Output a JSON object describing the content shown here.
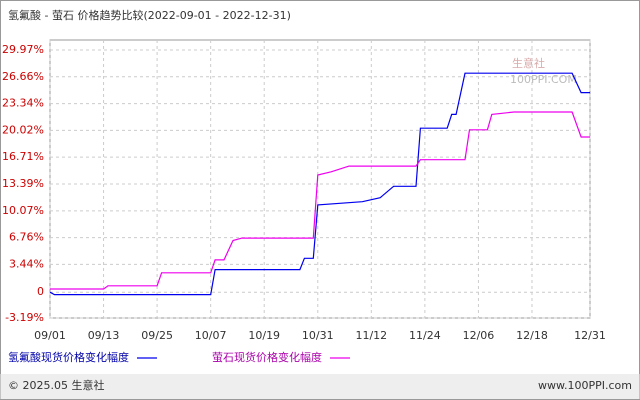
{
  "chart_data": {
    "type": "line",
    "title": "氢氟酸 - 萤石 价格趋势比较(2022-09-01 - 2022-12-31)",
    "xlim": [
      "09/01",
      "12/31"
    ],
    "xticks": [
      "09/01",
      "09/13",
      "09/25",
      "10/07",
      "10/19",
      "10/31",
      "11/12",
      "11/24",
      "12/06",
      "12/18",
      "12/31"
    ],
    "ylim": [
      -3.19,
      29.97
    ],
    "yticks": [
      {
        "value": -3.19,
        "label": "-3.19%"
      },
      0,
      {
        "value": 3.44,
        "label": "3.44%"
      },
      {
        "value": 6.76,
        "label": "6.76%"
      },
      {
        "value": 10.07,
        "label": "10.07%"
      },
      {
        "value": 13.39,
        "label": "13.39%"
      },
      {
        "value": 16.71,
        "label": "16.71%"
      },
      {
        "value": 20.02,
        "label": "20.02%"
      },
      {
        "value": 23.34,
        "label": "23.34%"
      },
      {
        "value": 26.66,
        "label": "26.66%"
      },
      {
        "value": 29.97,
        "label": "29.97%"
      }
    ],
    "grid": true,
    "series": [
      {
        "name": "氢氟酸现货价格变化幅度",
        "color": "#0000ee",
        "x": [
          "09/01",
          "09/02",
          "10/07",
          "10/08",
          "10/27",
          "10/28",
          "10/30",
          "10/31",
          "11/10",
          "11/14",
          "11/17",
          "11/22",
          "11/23",
          "11/29",
          "11/30",
          "12/01",
          "12/03",
          "12/27",
          "12/29",
          "12/31"
        ],
        "values": [
          0,
          -0.3,
          -0.3,
          2.8,
          2.8,
          4.2,
          4.2,
          10.8,
          11.2,
          11.7,
          13.1,
          13.1,
          20.3,
          20.3,
          22,
          22,
          27.1,
          27.1,
          24.7,
          24.7
        ]
      },
      {
        "name": "萤石现货价格变化幅度",
        "color": "#ee00ee",
        "x": [
          "09/01",
          "09/13",
          "09/14",
          "09/25",
          "09/26",
          "10/07",
          "10/08",
          "10/10",
          "10/12",
          "10/14",
          "10/30",
          "10/31",
          "11/03",
          "11/07",
          "11/22",
          "11/23",
          "12/03",
          "12/04",
          "12/08",
          "12/09",
          "12/14",
          "12/27",
          "12/29",
          "12/31"
        ],
        "values": [
          0.4,
          0.4,
          0.8,
          0.8,
          2.4,
          2.4,
          4.0,
          4.0,
          6.4,
          6.7,
          6.7,
          14.5,
          14.9,
          15.6,
          15.6,
          16.4,
          16.4,
          20.1,
          20.1,
          22.0,
          22.3,
          22.3,
          19.2,
          19.2
        ]
      }
    ]
  },
  "watermark": {
    "brand": "生意社",
    "site": "100PPI.COM"
  },
  "footer": {
    "copyright": "© 2025.05 生意社",
    "url": "www.100PPI.com"
  }
}
